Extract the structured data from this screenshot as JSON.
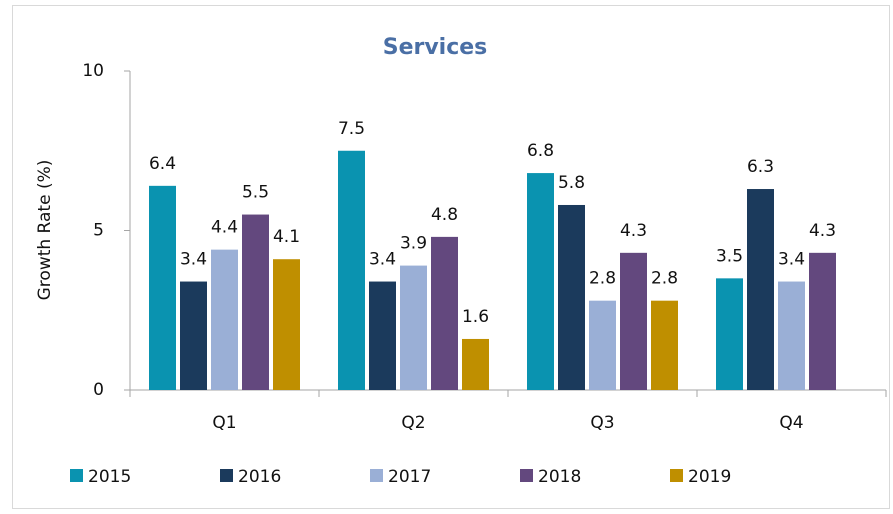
{
  "chart_data": {
    "type": "bar",
    "title": "Services",
    "y_label": "Growth Rate (%)",
    "categories": [
      "Q1",
      "Q2",
      "Q3",
      "Q4"
    ],
    "series": [
      {
        "name": "2015",
        "color": "#0a93b0",
        "values": [
          6.4,
          7.5,
          6.8,
          3.5
        ]
      },
      {
        "name": "2016",
        "color": "#1b3a5c",
        "values": [
          3.4,
          3.4,
          5.8,
          6.3
        ]
      },
      {
        "name": "2017",
        "color": "#9aafd6",
        "values": [
          4.4,
          3.9,
          2.8,
          3.4
        ]
      },
      {
        "name": "2018",
        "color": "#63487e",
        "values": [
          5.5,
          4.8,
          4.3,
          4.3
        ]
      },
      {
        "name": "2019",
        "color": "#bf8f00",
        "values": [
          4.1,
          1.6,
          2.8,
          null
        ]
      }
    ],
    "ylim": [
      0,
      10
    ],
    "yticks": [
      0,
      5,
      10
    ],
    "grid": false,
    "legend": "bottom"
  }
}
